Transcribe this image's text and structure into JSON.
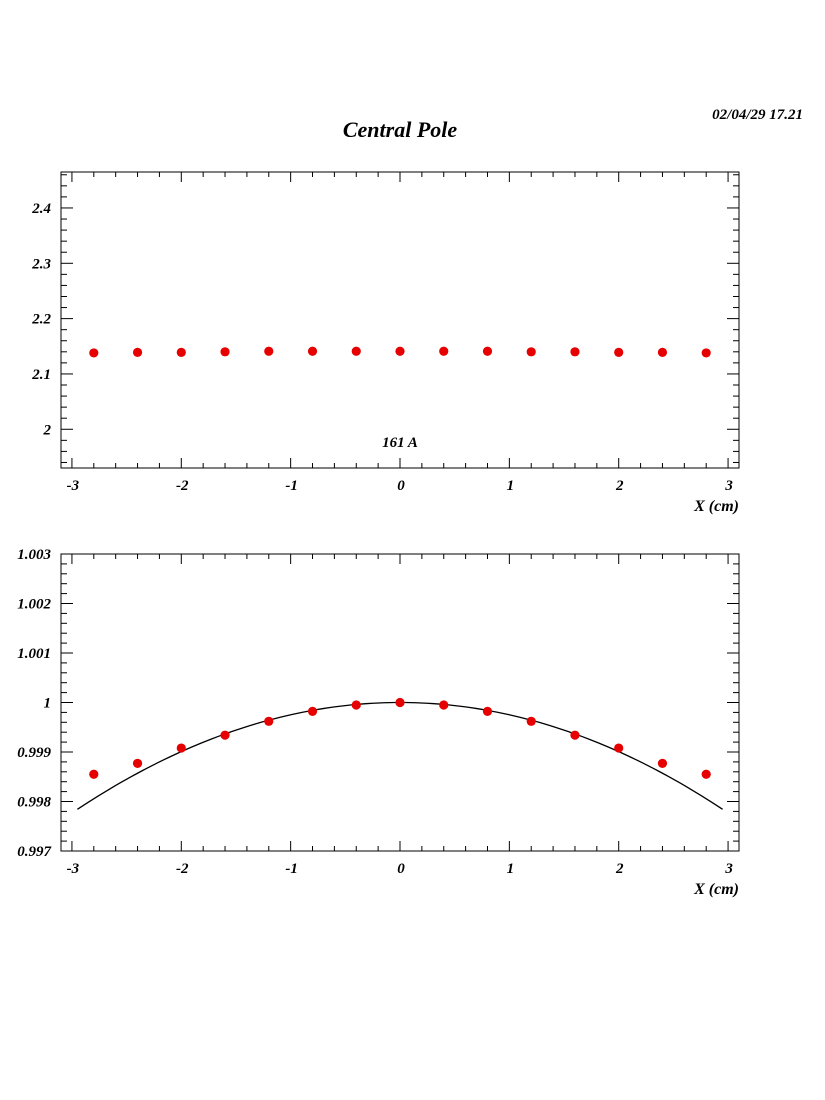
{
  "page": {
    "title": "Central Pole",
    "date": "02/04/29   17.21"
  },
  "chart_data": [
    {
      "type": "scatter",
      "title": "",
      "xlabel": "X (cm)",
      "ylabel": "",
      "annotation": "161 A",
      "xlim": [
        -3.1,
        3.1
      ],
      "ylim": [
        1.93,
        2.465
      ],
      "x_ticks": [
        -3,
        -2,
        -1,
        0,
        1,
        2,
        3
      ],
      "x_ticklabels": [
        "-3",
        "-2",
        "-1",
        "0",
        "1",
        "2",
        "3"
      ],
      "y_ticks": [
        2,
        2.1,
        2.2,
        2.3,
        2.4
      ],
      "y_ticklabels": [
        "2",
        "2.1",
        "2.2",
        "2.3",
        "2.4"
      ],
      "marker_color": "#e60000",
      "series": [
        {
          "x": [
            -2.8,
            -2.4,
            -2.0,
            -1.6,
            -1.2,
            -0.8,
            -0.4,
            0.0,
            0.4,
            0.8,
            1.2,
            1.6,
            2.0,
            2.4,
            2.8
          ],
          "y": [
            2.138,
            2.139,
            2.139,
            2.14,
            2.141,
            2.141,
            2.141,
            2.141,
            2.141,
            2.141,
            2.14,
            2.14,
            2.139,
            2.139,
            2.138
          ]
        }
      ]
    },
    {
      "type": "scatter",
      "title": "",
      "xlabel": "X (cm)",
      "ylabel": "",
      "xlim": [
        -3.1,
        3.1
      ],
      "ylim": [
        0.997,
        1.003
      ],
      "x_ticks": [
        -3,
        -2,
        -1,
        0,
        1,
        2,
        3
      ],
      "x_ticklabels": [
        "-3",
        "-2",
        "-1",
        "0",
        "1",
        "2",
        "3"
      ],
      "y_ticks": [
        0.997,
        0.998,
        0.999,
        1,
        1.001,
        1.002,
        1.003
      ],
      "y_ticklabels": [
        "0.997",
        "0.998",
        "0.999",
        "1",
        "1.001",
        "1.002",
        "1.003"
      ],
      "marker_color": "#e60000",
      "series": [
        {
          "x": [
            -2.8,
            -2.4,
            -2.0,
            -1.6,
            -1.2,
            -0.8,
            -0.4,
            0.0,
            0.4,
            0.8,
            1.2,
            1.6,
            2.0,
            2.4,
            2.8
          ],
          "y": [
            0.99855,
            0.99877,
            0.99908,
            0.99934,
            0.99962,
            0.99982,
            0.99995,
            1.0,
            0.99995,
            0.99982,
            0.99962,
            0.99934,
            0.99908,
            0.99877,
            0.99855
          ]
        }
      ],
      "fit": {
        "type": "parabola",
        "peak_x": 0.0,
        "peak_y": 1.0,
        "curvature": -0.000248,
        "x_range": [
          -2.95,
          2.95
        ]
      }
    }
  ]
}
